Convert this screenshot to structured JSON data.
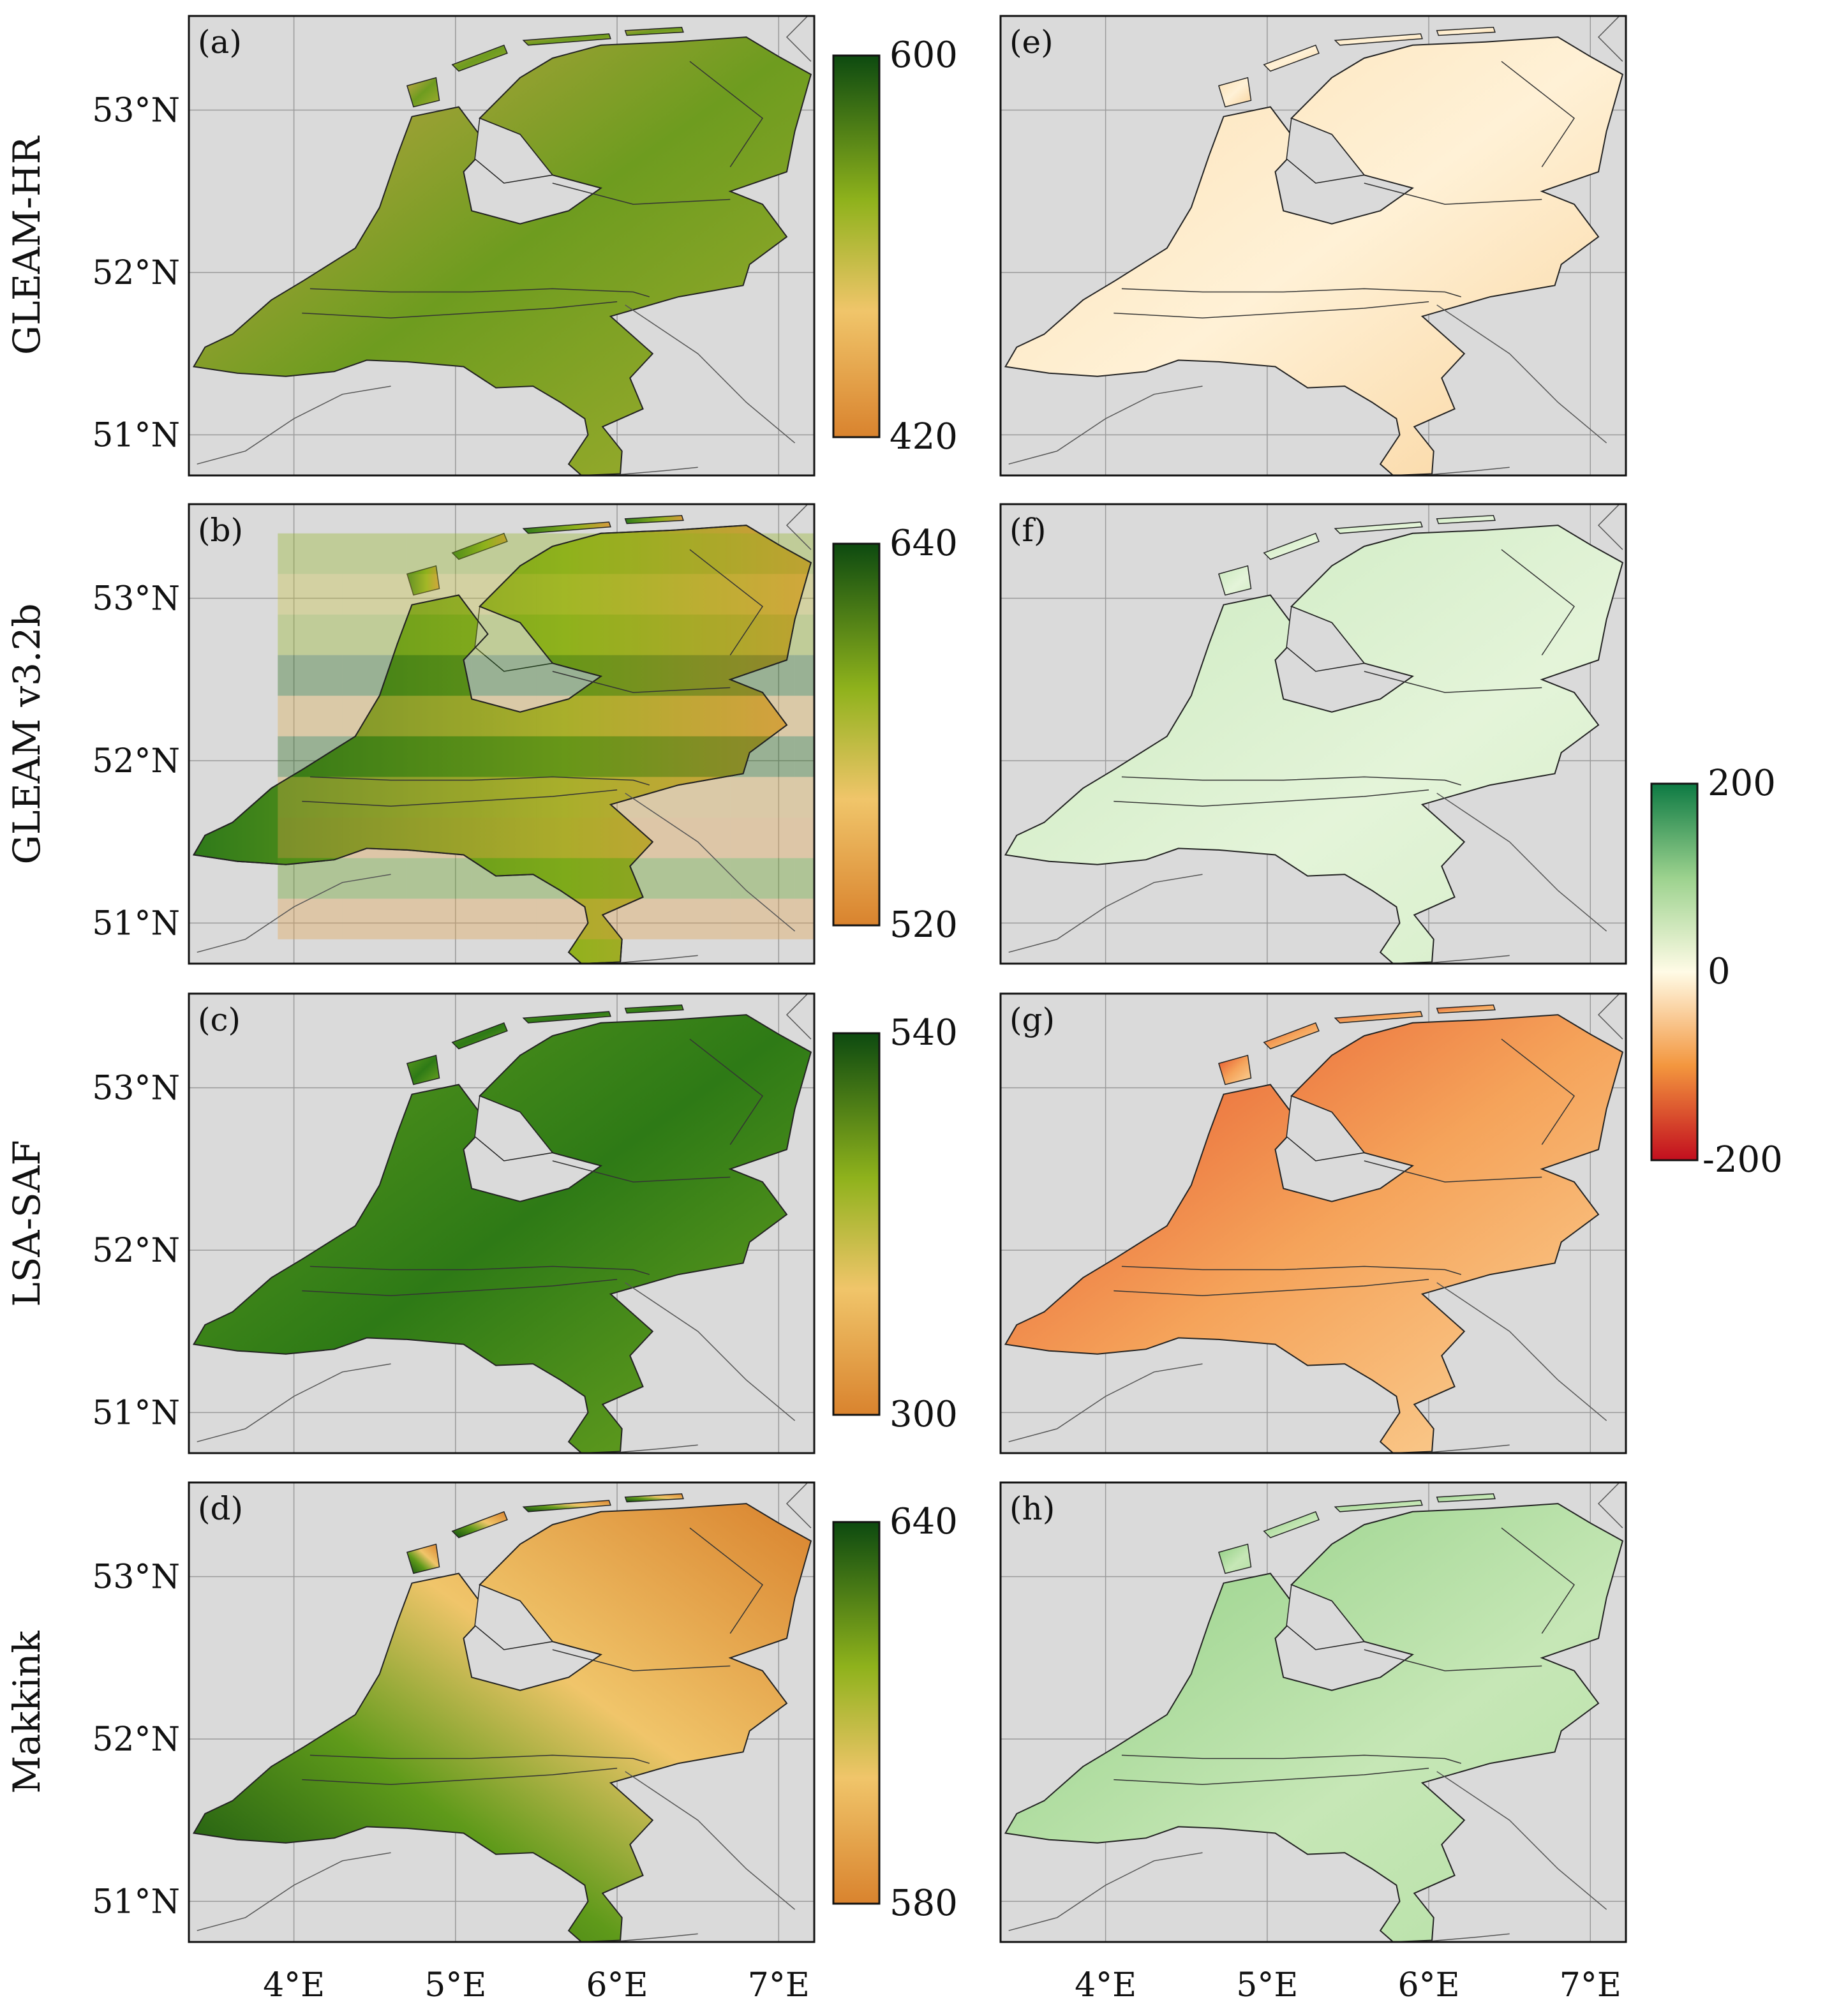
{
  "figure": {
    "rows": [
      {
        "label": "GLEAM-HR",
        "left_panel": "(a)",
        "right_panel": "(e)",
        "colorbar_max": "600",
        "colorbar_min": "420"
      },
      {
        "label": "GLEAM v3.2b",
        "left_panel": "(b)",
        "right_panel": "(f)",
        "colorbar_max": "640",
        "colorbar_min": "520"
      },
      {
        "label": "LSA-SAF",
        "left_panel": "(c)",
        "right_panel": "(g)",
        "colorbar_max": "540",
        "colorbar_min": "300"
      },
      {
        "label": "Makkink",
        "left_panel": "(d)",
        "right_panel": "(h)",
        "colorbar_max": "640",
        "colorbar_min": "580"
      }
    ],
    "lat_labels": [
      "53°N",
      "52°N",
      "51°N"
    ],
    "lon_labels": [
      "4°E",
      "5°E",
      "6°E",
      "7°E"
    ],
    "diff_colorbar": {
      "max": "200",
      "mid": "0",
      "min": "-200"
    },
    "colors": {
      "ocean": "#dadada",
      "grid": "#9a9a9a",
      "seq_low": "#d9832e",
      "seq_mid": "#f0c56a",
      "seq_mid2": "#8fb21c",
      "seq_high": "#0d4a10",
      "div_low": "#c20e1e",
      "div_mid": "#fffbe6",
      "div_high": "#0d7a43"
    },
    "panel_style": {
      "a": "mixed-green",
      "b": "blocky",
      "c": "patchy-green",
      "d": "west-east-gradient",
      "e": "pale-orange",
      "f": "pale-green",
      "g": "red-orange",
      "h": "green"
    }
  }
}
